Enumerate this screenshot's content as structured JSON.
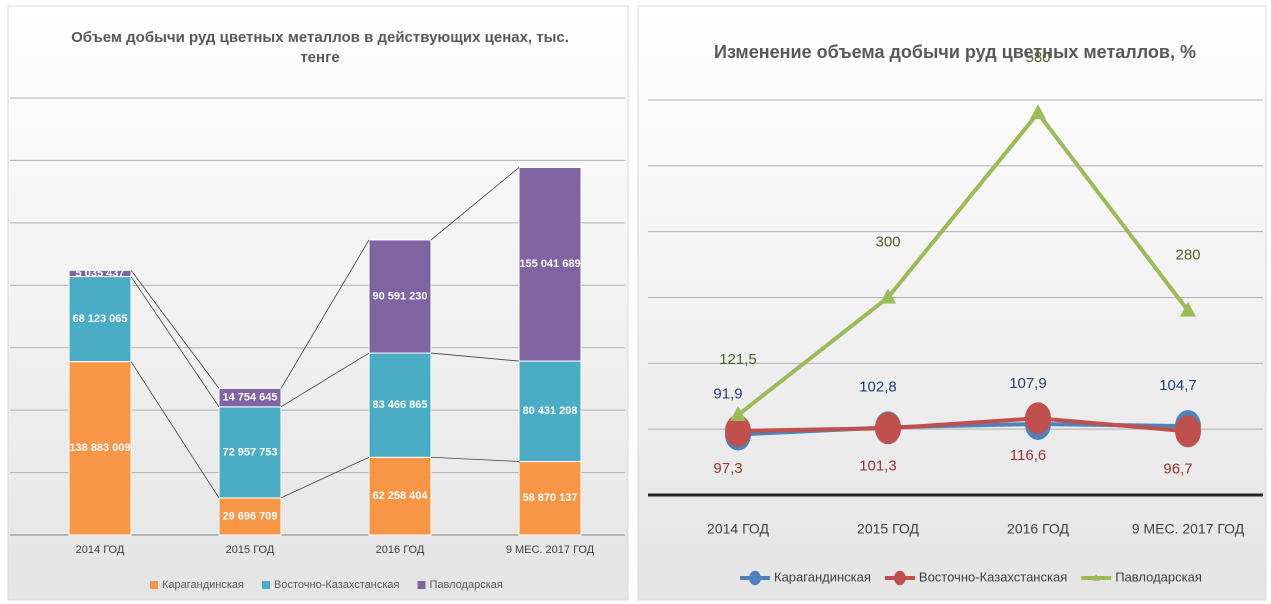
{
  "chart_data": [
    {
      "type": "bar",
      "stacked": true,
      "series_lines": true,
      "title": "Объем добычи руд цветных металлов в действующих ценах, тыс. тенге",
      "categories": [
        "2014 ГОД",
        "2015 ГОД",
        "2016 ГОД",
        "9 МЕС. 2017 ГОД"
      ],
      "series": [
        {
          "name": "Карагандинская",
          "color": "#f79646",
          "values": [
            138883009,
            29696709,
            62258404,
            58870137
          ],
          "value_labels": [
            "138 883 009",
            "29 696 709",
            "62 258 404",
            "58 870 137"
          ]
        },
        {
          "name": "Восточно-Казахстанская",
          "color": "#4bacc6",
          "values": [
            68123065,
            72957753,
            83466865,
            80431208
          ],
          "value_labels": [
            "68 123 065",
            "72 957 753",
            "83 466 865",
            "80 431 208"
          ]
        },
        {
          "name": "Павлодарская",
          "color": "#8064a2",
          "values": [
            5035437,
            14754645,
            90591230,
            155041689
          ],
          "value_labels": [
            "5 035 437",
            "14 754 645",
            "90 591 230",
            "155 041 689"
          ]
        }
      ],
      "ylim": [
        0,
        350000000
      ],
      "yticks": [
        0,
        50000000,
        100000000,
        150000000,
        200000000,
        250000000,
        300000000,
        350000000
      ],
      "grid": true,
      "legend": "bottom"
    },
    {
      "type": "line",
      "title": "Изменение объема добычи руд цветных металлов, %",
      "categories": [
        "2014 ГОД",
        "2015 ГОД",
        "2016 ГОД",
        "9 МЕС. 2017 ГОД"
      ],
      "series": [
        {
          "name": "Карагандинская",
          "color": "#4f81bd",
          "label_color": "#1f3f7a",
          "values": [
            91.9,
            102.8,
            107.9,
            104.7
          ],
          "value_labels": [
            "91,9",
            "102,8",
            "107,9",
            "104,7"
          ]
        },
        {
          "name": "Восточно-Казахстанская",
          "color": "#c0504d",
          "label_color": "#943634",
          "values": [
            97.3,
            101.3,
            116.6,
            96.7
          ],
          "value_labels": [
            "97,3",
            "101,3",
            "116,6",
            "96,7"
          ]
        },
        {
          "name": "Павлодарская",
          "color": "#9bbb59",
          "label_color": "#4f6228",
          "values": [
            121.5,
            300,
            580,
            280
          ],
          "value_labels": [
            "121,5",
            "300",
            "580",
            "280"
          ]
        }
      ],
      "ylim": [
        0,
        600
      ],
      "yticks": [
        0,
        100,
        200,
        300,
        400,
        500,
        600
      ],
      "grid": true,
      "legend": "bottom"
    }
  ]
}
